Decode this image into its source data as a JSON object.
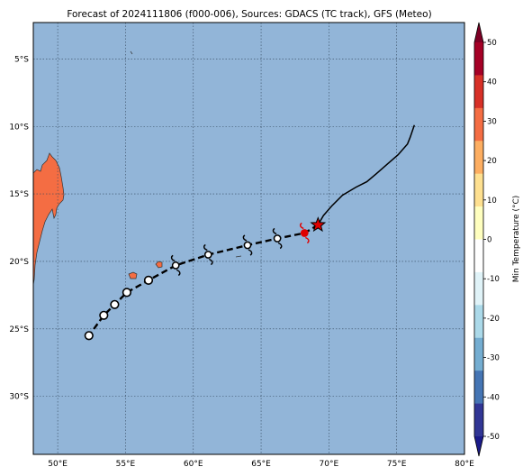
{
  "title": "Forecast of 2024111806 (f000-006), Sources: GDACS (TC track), GFS (Meteo)",
  "map": {
    "lon_range": [
      48.2,
      80
    ],
    "lat_range": [
      -34.3,
      -2.3
    ],
    "grid_lons": [
      50,
      55,
      60,
      65,
      70,
      75,
      80
    ],
    "grid_lats": [
      -5,
      -10,
      -15,
      -20,
      -25,
      -30
    ],
    "lon_labels": [
      "50°E",
      "55°E",
      "60°E",
      "65°E",
      "70°E",
      "75°E",
      "80°E"
    ],
    "lat_labels": [
      "5°S",
      "10°S",
      "15°S",
      "20°S",
      "25°S",
      "30°S"
    ],
    "ocean_color": "#92b5d8",
    "land_color": "#f46d43"
  },
  "track": {
    "past": [
      [
        76.3,
        -9.9
      ],
      [
        76.0,
        -10.8
      ],
      [
        75.8,
        -11.3
      ],
      [
        75.1,
        -12.1
      ],
      [
        74.3,
        -12.8
      ],
      [
        73.5,
        -13.5
      ],
      [
        72.8,
        -14.1
      ],
      [
        72.0,
        -14.5
      ],
      [
        71.0,
        -15.1
      ],
      [
        70.2,
        -15.9
      ],
      [
        69.6,
        -16.6
      ],
      [
        69.2,
        -17.3
      ]
    ],
    "current": [
      69.2,
      -17.3
    ],
    "forecast": [
      [
        68.2,
        -17.9
      ],
      [
        66.2,
        -18.3
      ],
      [
        64.0,
        -18.8
      ],
      [
        61.1,
        -19.5
      ],
      [
        58.7,
        -20.3
      ],
      [
        56.7,
        -21.4
      ],
      [
        55.1,
        -22.3
      ],
      [
        54.2,
        -23.2
      ],
      [
        53.4,
        -24.0
      ],
      [
        52.3,
        -25.5
      ]
    ],
    "forecast_symbols": [
      {
        "lon": 68.2,
        "lat": -17.9,
        "kind": "storm-red"
      },
      {
        "lon": 66.2,
        "lat": -18.3,
        "kind": "storm"
      },
      {
        "lon": 64.0,
        "lat": -18.8,
        "kind": "storm"
      },
      {
        "lon": 61.1,
        "lat": -19.5,
        "kind": "storm"
      },
      {
        "lon": 58.7,
        "lat": -20.3,
        "kind": "storm"
      },
      {
        "lon": 56.7,
        "lat": -21.4,
        "kind": "circle"
      },
      {
        "lon": 55.1,
        "lat": -22.3,
        "kind": "circle"
      },
      {
        "lon": 54.2,
        "lat": -23.2,
        "kind": "circle"
      },
      {
        "lon": 53.4,
        "lat": -24.0,
        "kind": "circle"
      },
      {
        "lon": 52.3,
        "lat": -25.5,
        "kind": "circle"
      }
    ]
  },
  "colorbar": {
    "label": "Min Temperature (°C)",
    "ticks": [
      50,
      40,
      30,
      20,
      10,
      0,
      -10,
      -20,
      -30,
      -40,
      -50
    ],
    "colors": [
      "#7d0025",
      "#a50026",
      "#d73027",
      "#f46d43",
      "#fdae61",
      "#fee090",
      "#ffffbf",
      "#ffffff",
      "#e0f3f8",
      "#abd9e9",
      "#74add1",
      "#4575b4",
      "#313695",
      "#1b1b8a"
    ]
  }
}
